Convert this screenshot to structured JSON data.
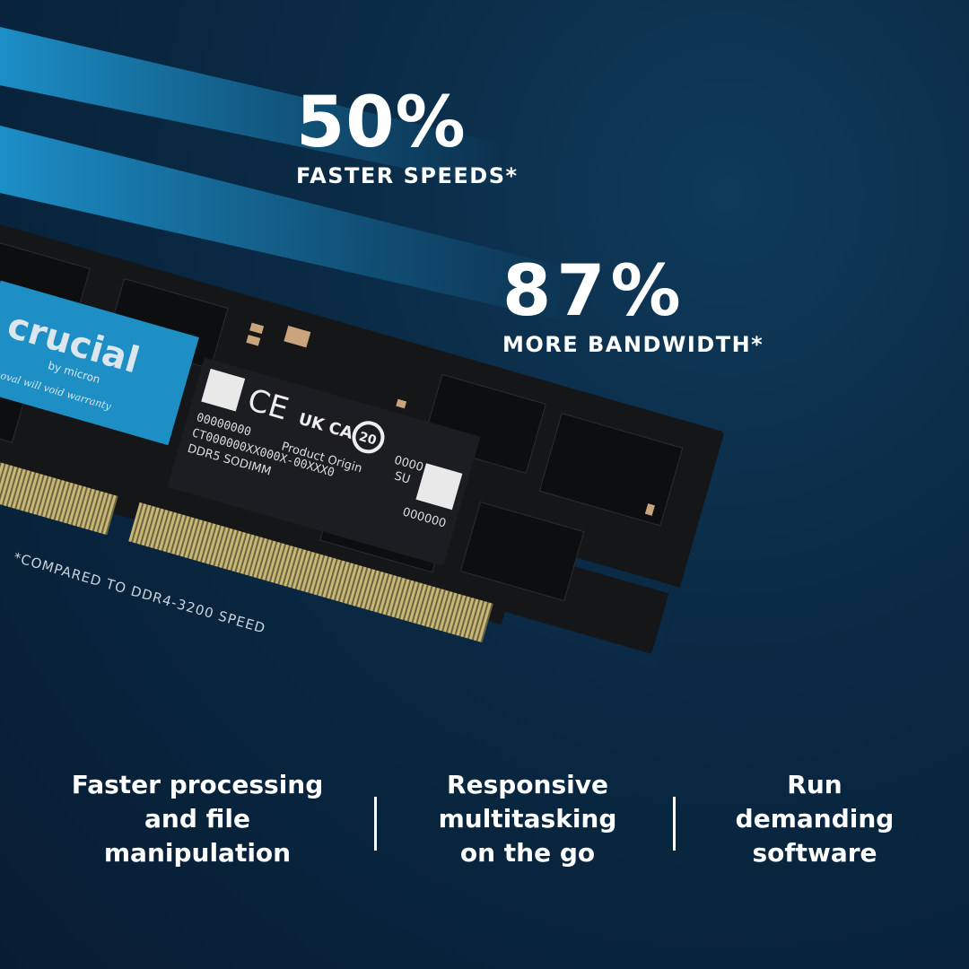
{
  "stats": [
    {
      "value": "50%",
      "label": "FASTER SPEEDS*"
    },
    {
      "value": "87%",
      "label": "MORE BANDWIDTH*"
    }
  ],
  "footnote": "*COMPARED TO DDR4-3200 SPEED",
  "module_label": {
    "brand": "crucial",
    "by": "by micron",
    "warranty": "Removal will void warranty",
    "serial": "00000000",
    "part": "CT000000XX000X-00XXX0",
    "type": "DDR5 SODIMM",
    "origin": "Product Origin",
    "ukca": "UK CA",
    "years": "20",
    "code1": "0000",
    "code2": "SU",
    "code3": "000000"
  },
  "features": [
    {
      "text": "Faster processing\nand file\nmanipulation"
    },
    {
      "text": "Responsive\nmultitasking\non the go"
    },
    {
      "text": "Run\ndemanding\nsoftware"
    }
  ],
  "colors": {
    "background": "#0a2a45",
    "accent": "#1e9ad6",
    "label_blue": "#1d8fc4",
    "pcb": "#141618",
    "gold": "#b9a86a"
  }
}
